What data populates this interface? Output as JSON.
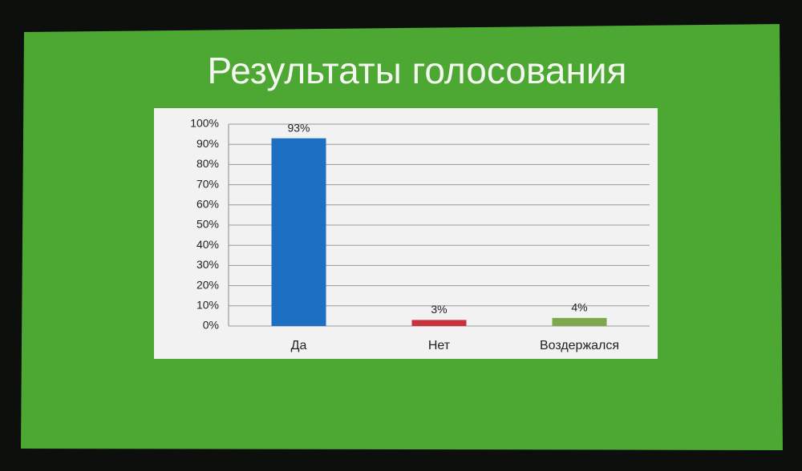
{
  "chart_data": {
    "type": "bar",
    "title": "Результаты голосования",
    "categories": [
      "Да",
      "Нет",
      "Воздержался"
    ],
    "values": [
      93,
      3,
      4
    ],
    "value_labels": [
      "93%",
      "3%",
      "4%"
    ],
    "colors": [
      "#1c6fc1",
      "#c8323c",
      "#7ea84c"
    ],
    "ylim": [
      0,
      100
    ],
    "yticks": [
      {
        "value": 0,
        "label": "0%"
      },
      {
        "value": 10,
        "label": "10%"
      },
      {
        "value": 20,
        "label": "20%"
      },
      {
        "value": 30,
        "label": "30%"
      },
      {
        "value": 40,
        "label": "40%"
      },
      {
        "value": 50,
        "label": "50%"
      },
      {
        "value": 60,
        "label": "60%"
      },
      {
        "value": 70,
        "label": "70%"
      },
      {
        "value": 80,
        "label": "80%"
      },
      {
        "value": 90,
        "label": "90%"
      },
      {
        "value": 100,
        "label": "100%"
      }
    ],
    "grid": true
  }
}
